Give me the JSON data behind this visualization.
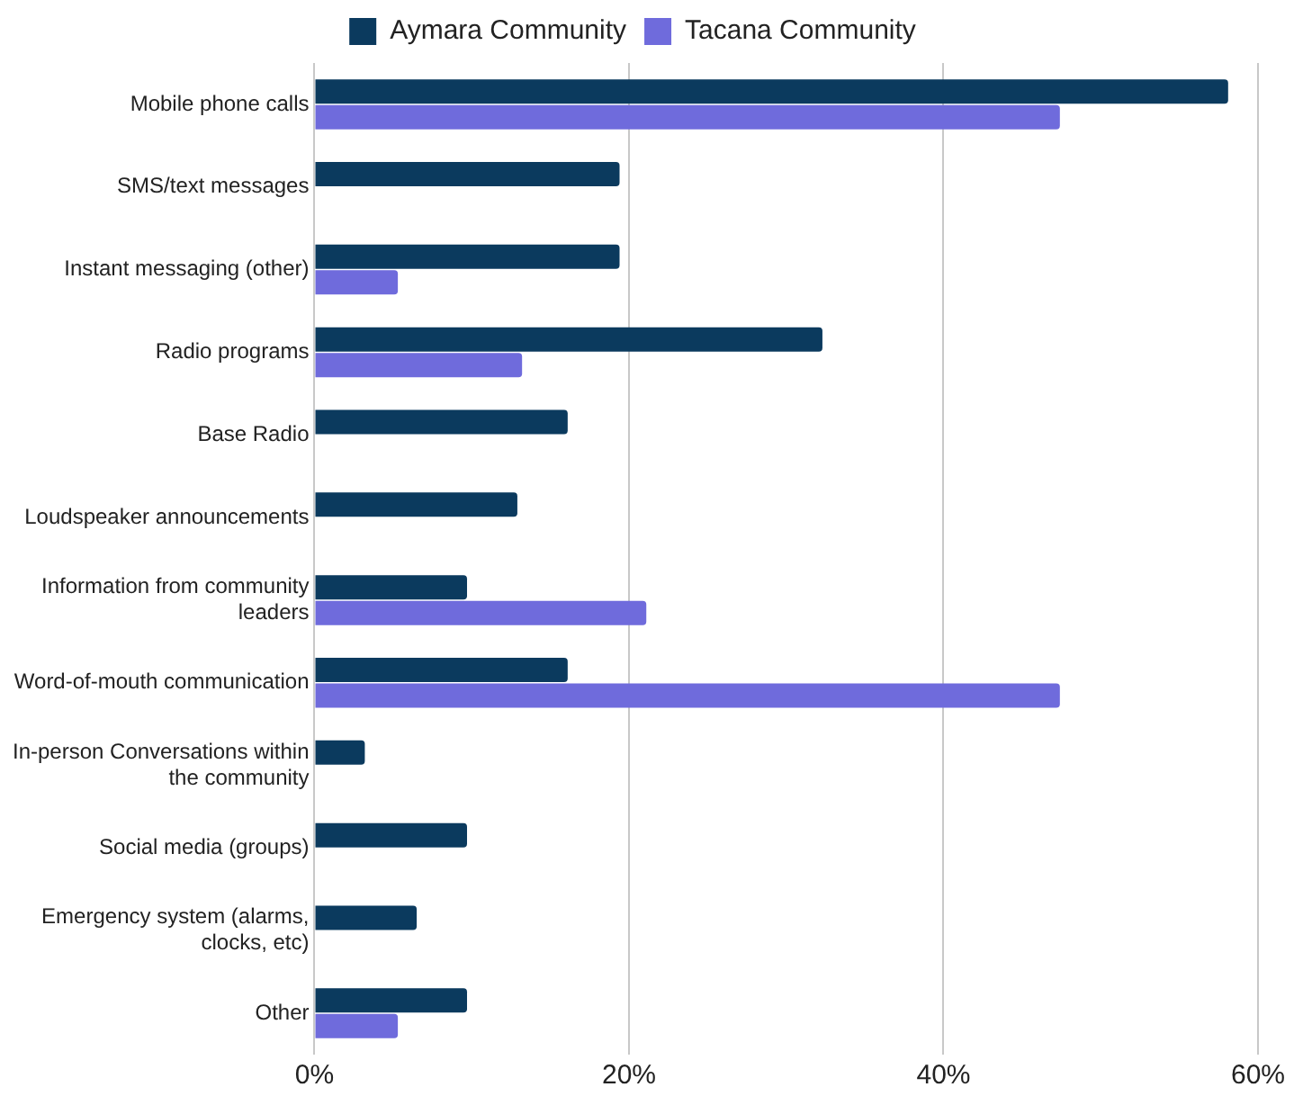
{
  "chart_data": {
    "type": "bar",
    "orientation": "horizontal",
    "categories": [
      "Mobile phone calls",
      "SMS/text messages",
      "Instant messaging (other)",
      "Radio programs",
      "Base Radio",
      "Loudspeaker announcements",
      "Information from community leaders",
      "Word-of-mouth communication",
      "In-person Conversations within the community",
      "Social media (groups)",
      "Emergency system (alarms, clocks, etc)",
      "Other"
    ],
    "series": [
      {
        "name": "Aymara Community",
        "color": "#0b3a5e",
        "values": [
          58.1,
          19.4,
          19.4,
          32.3,
          16.1,
          12.9,
          9.7,
          16.1,
          3.2,
          9.7,
          6.5,
          9.7
        ]
      },
      {
        "name": "Tacana Community",
        "color": "#6f6bdc",
        "values": [
          47.4,
          null,
          5.3,
          13.2,
          null,
          null,
          21.1,
          47.4,
          null,
          null,
          null,
          5.3
        ]
      }
    ],
    "xlim": [
      0,
      60
    ],
    "xticks": [
      {
        "value": 0,
        "label": "0%"
      },
      {
        "value": 20,
        "label": "20%"
      },
      {
        "value": 40,
        "label": "40%"
      },
      {
        "value": 60,
        "label": "60%"
      }
    ],
    "grid": "x",
    "legend": "top"
  }
}
